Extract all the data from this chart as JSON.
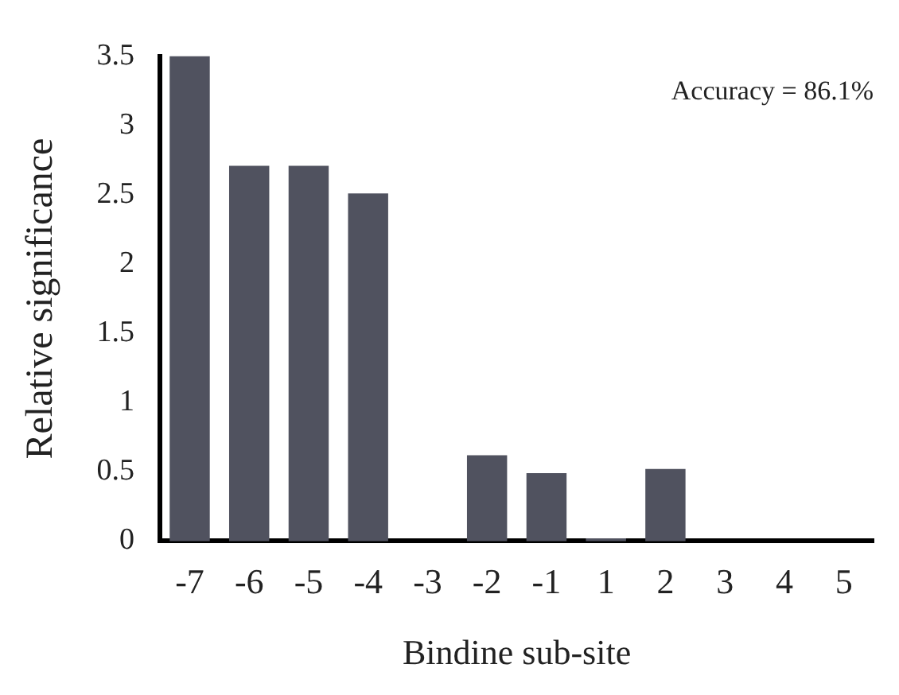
{
  "chart_data": {
    "type": "bar",
    "xlabel": "Bindine sub-site",
    "ylabel": "Relative significance",
    "categories": [
      "-7",
      "-6",
      "-5",
      "-4",
      "-3",
      "-2",
      "-1",
      "1",
      "2",
      "3",
      "4",
      "5"
    ],
    "values": [
      3.5,
      2.71,
      2.71,
      2.51,
      0,
      0.62,
      0.49,
      0.02,
      0.52,
      0,
      0,
      0
    ],
    "color": "#50525f",
    "ylim": [
      0,
      3.5
    ],
    "yticks": [
      0,
      0.5,
      1,
      1.5,
      2,
      2.5,
      3,
      3.5
    ],
    "grid": false,
    "legend": false,
    "annotations": [
      "Accuracy = 86.1%"
    ]
  }
}
